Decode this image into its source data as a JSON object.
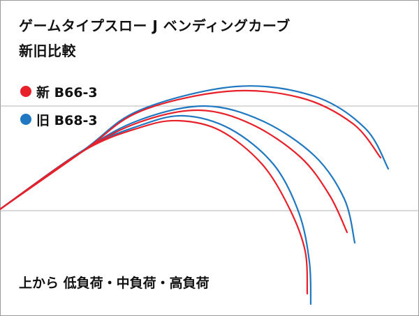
{
  "title_line1": "ゲームタイプスロー J ベンディングカーブ",
  "title_line2": "新旧比較",
  "footnote": "上から 低負荷・中負荷・高負荷",
  "chart_data": {
    "type": "line",
    "title": "ゲームタイプスロー J ベンディングカーブ 新旧比較",
    "xlabel": "",
    "ylabel": "",
    "grid": "two horizontal reference lines",
    "legend_position": "top-left",
    "legend": [
      {
        "name": "新 B66-3",
        "color": "#e8202a"
      },
      {
        "name": "旧 B68-3",
        "color": "#1f78c1"
      }
    ],
    "series": [
      {
        "name": "新 B66-3",
        "color": "#e8202a",
        "curves": [
          {
            "load": "低負荷",
            "points": [
              [
                0,
                300
              ],
              [
                120,
                216
              ],
              [
                200,
                160
              ],
              [
                325,
                131
              ],
              [
                430,
                140
              ],
              [
                505,
                177
              ],
              [
                545,
                226
              ]
            ]
          },
          {
            "load": "中負荷",
            "points": [
              [
                0,
                300
              ],
              [
                120,
                216
              ],
              [
                200,
                175
              ],
              [
                285,
                158
              ],
              [
                360,
                178
              ],
              [
                430,
                225
              ],
              [
                472,
                280
              ],
              [
                497,
                333
              ]
            ]
          },
          {
            "load": "高負荷",
            "points": [
              [
                0,
                300
              ],
              [
                120,
                216
              ],
              [
                200,
                183
              ],
              [
                255,
                173
              ],
              [
                315,
                187
              ],
              [
                375,
                235
              ],
              [
                415,
                300
              ],
              [
                437,
                360
              ],
              [
                440,
                421
              ]
            ]
          }
        ]
      },
      {
        "name": "旧 B68-3",
        "color": "#1f78c1",
        "curves": [
          {
            "load": "低負荷",
            "points": [
              [
                0,
                300
              ],
              [
                120,
                215
              ],
              [
                200,
                158
              ],
              [
                338,
                124
              ],
              [
                450,
                138
              ],
              [
                523,
                184
              ],
              [
                556,
                242
              ]
            ]
          },
          {
            "load": "中負荷",
            "points": [
              [
                0,
                300
              ],
              [
                120,
                215
              ],
              [
                200,
                172
              ],
              [
                293,
                152
              ],
              [
                375,
                173
              ],
              [
                450,
                223
              ],
              [
                493,
                285
              ],
              [
                508,
                348
              ]
            ]
          },
          {
            "load": "高負荷",
            "points": [
              [
                0,
                300
              ],
              [
                120,
                215
              ],
              [
                200,
                180
              ],
              [
                263,
                166
              ],
              [
                330,
                185
              ],
              [
                392,
                236
              ],
              [
                428,
                305
              ],
              [
                443,
                375
              ],
              [
                445,
                436
              ]
            ]
          }
        ]
      }
    ]
  }
}
